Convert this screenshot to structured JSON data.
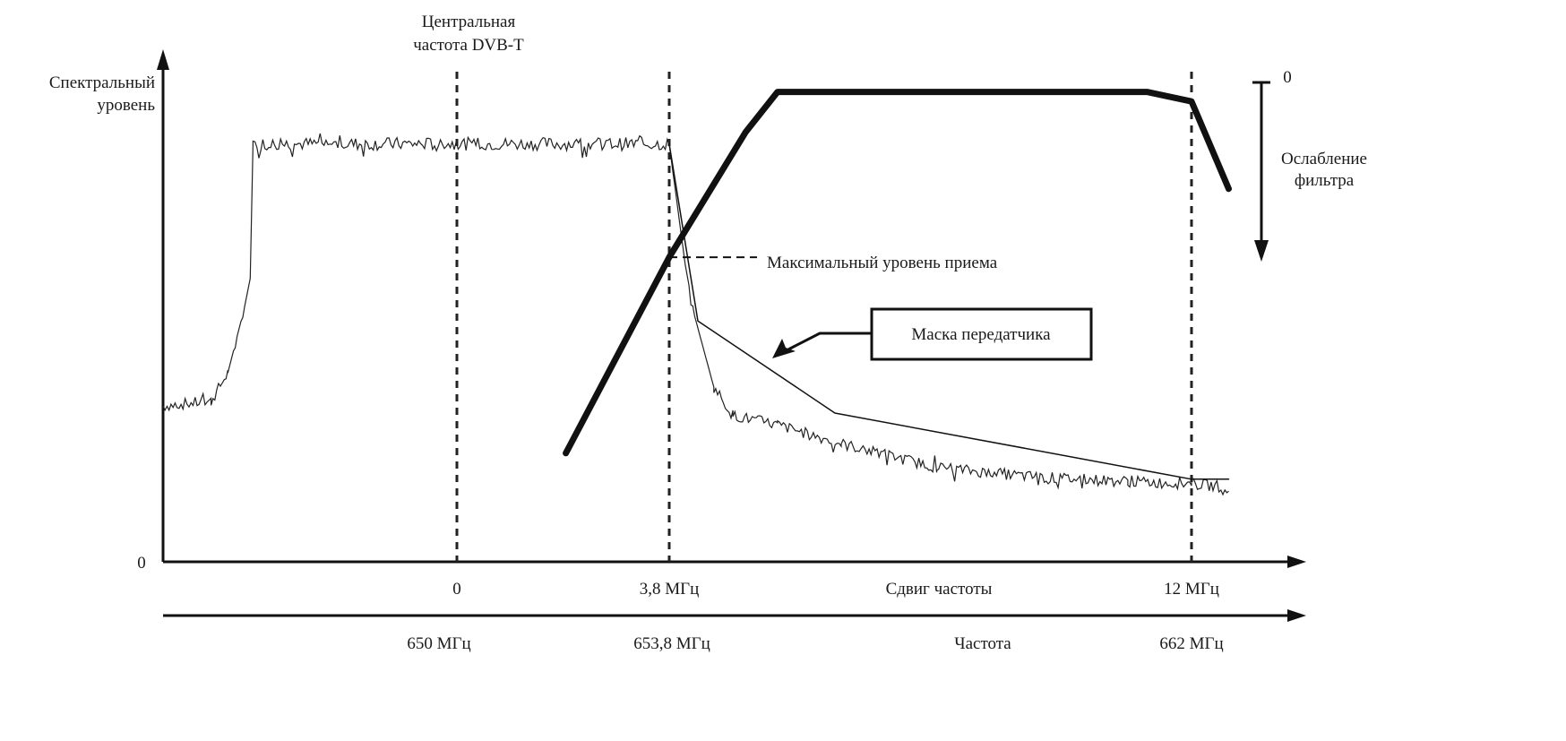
{
  "chart_data": {
    "type": "line",
    "title": "",
    "annotations": {
      "center_label_line1": "Центральная",
      "center_label_line2": "частота DVB-T",
      "max_level_label": "Максимальный уровень приема",
      "mask_box_label": "Маска передатчика",
      "filter_label_line1": "Ослабление",
      "filter_label_line2": "фильтра",
      "filter_zero_label": "0"
    },
    "y_axis": {
      "label_line1": "Спектральный",
      "label_line2": "уровень",
      "origin_label": "0",
      "range": [
        0,
        100
      ]
    },
    "x_axis_offset": {
      "label": "Сдвиг частоты",
      "ticks": [
        {
          "value": 0,
          "label": "0"
        },
        {
          "value": 3.8,
          "label": "3,8 МГц"
        },
        {
          "value": 12,
          "label": "12 МГц"
        }
      ],
      "range_mhz": [
        -5.26,
        13.3
      ]
    },
    "x_axis_absolute": {
      "label": "Частота",
      "ticks": [
        {
          "value": 650,
          "label": "650 МГц"
        },
        {
          "value": 653.8,
          "label": "653,8 МГц"
        },
        {
          "value": 662,
          "label": "662 МГц"
        }
      ]
    },
    "series": [
      {
        "name": "DVB-T spectrum (noisy)",
        "style": "thin-noisy",
        "points": [
          [
            -5.26,
            33
          ],
          [
            -4.4,
            34
          ],
          [
            -4.1,
            40
          ],
          [
            -3.8,
            54
          ],
          [
            -3.7,
            60
          ],
          [
            -3.65,
            88.5
          ],
          [
            3.8,
            88.5
          ],
          [
            4.05,
            63
          ],
          [
            4.2,
            52
          ],
          [
            4.5,
            37
          ],
          [
            4.8,
            31
          ],
          [
            5.5,
            29
          ],
          [
            6.5,
            25
          ],
          [
            8.0,
            20
          ],
          [
            9.5,
            18
          ],
          [
            11.0,
            17
          ],
          [
            12.0,
            16.5
          ],
          [
            12.6,
            15.8
          ]
        ]
      },
      {
        "name": "Transmitter mask",
        "style": "thin",
        "points": [
          [
            3.8,
            88.5
          ],
          [
            4.25,
            51
          ],
          [
            6.4,
            31.5
          ],
          [
            12.0,
            17.5
          ],
          [
            12.6,
            17.5
          ]
        ]
      },
      {
        "name": "Filter response",
        "style": "thick",
        "points": [
          [
            1.95,
            23
          ],
          [
            3.8,
            64.5
          ],
          [
            5.0,
            91
          ],
          [
            5.5,
            99.5
          ],
          [
            11.3,
            99.5
          ],
          [
            12.0,
            97.5
          ],
          [
            12.6,
            79
          ]
        ]
      }
    ],
    "markers": {
      "vertical_dashed_at_mhz": [
        0,
        3.8,
        12
      ],
      "max_level_value": 64.5
    }
  }
}
